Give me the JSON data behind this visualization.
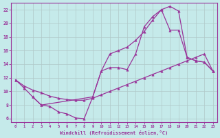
{
  "xlabel": "Windchill (Refroidissement éolien,°C)",
  "bg_color": "#c5eaea",
  "line_color": "#993399",
  "grid_color": "#b0c8c8",
  "axis_color": "#993399",
  "xlim": [
    -0.5,
    23.5
  ],
  "ylim": [
    5.5,
    23.0
  ],
  "xticks": [
    0,
    1,
    2,
    3,
    4,
    5,
    6,
    7,
    8,
    9,
    10,
    11,
    12,
    13,
    14,
    15,
    16,
    17,
    18,
    19,
    20,
    21,
    22,
    23
  ],
  "yticks": [
    6,
    8,
    10,
    12,
    14,
    16,
    18,
    20,
    22
  ],
  "line1_x": [
    0,
    1,
    2,
    3,
    4,
    5,
    6,
    7,
    8,
    9,
    10,
    11,
    12,
    13,
    14,
    15,
    16,
    17,
    18,
    19,
    20,
    21,
    22,
    23
  ],
  "line1_y": [
    11.7,
    10.5,
    9.2,
    8.0,
    7.8,
    7.0,
    6.7,
    6.1,
    6.0,
    9.2,
    13.0,
    13.5,
    13.5,
    13.2,
    15.5,
    19.5,
    21.0,
    22.0,
    22.5,
    21.8,
    15.0,
    14.5,
    14.3,
    13.0
  ],
  "line2_x": [
    0,
    1,
    2,
    3,
    4,
    5,
    6,
    7,
    8,
    9,
    10,
    11,
    12,
    13,
    14,
    15,
    16,
    17,
    18,
    19,
    20,
    21,
    22,
    23
  ],
  "line2_y": [
    11.7,
    10.8,
    10.2,
    9.8,
    9.3,
    9.0,
    8.8,
    8.7,
    8.7,
    9.0,
    9.5,
    10.0,
    10.5,
    11.0,
    11.5,
    12.0,
    12.5,
    13.0,
    13.5,
    14.0,
    14.5,
    15.0,
    15.5,
    13.0
  ],
  "line3_x": [
    2,
    3,
    9,
    10,
    11,
    12,
    13,
    14,
    15,
    16,
    17,
    18,
    19,
    20,
    21,
    22,
    23
  ],
  "line3_y": [
    9.2,
    8.0,
    9.2,
    13.0,
    15.5,
    16.0,
    16.5,
    17.5,
    18.8,
    20.5,
    22.0,
    19.0,
    19.0,
    15.0,
    14.5,
    14.3,
    13.0
  ]
}
